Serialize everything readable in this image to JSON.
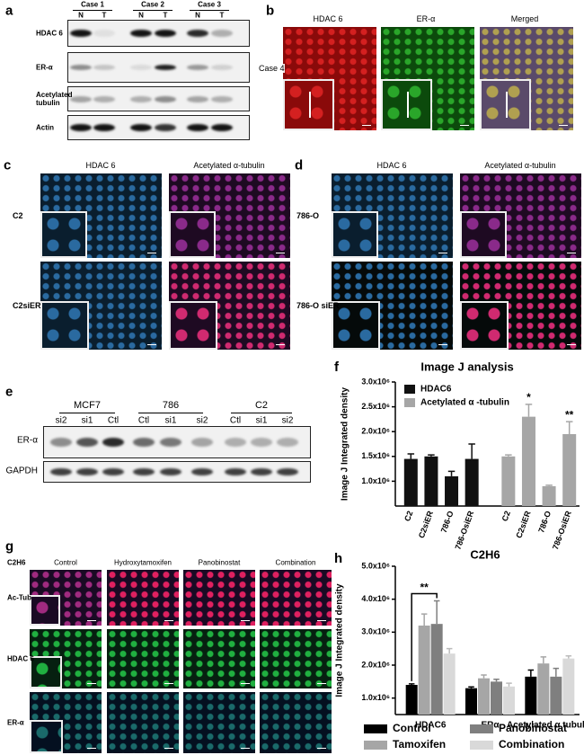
{
  "panels": {
    "a": {
      "label": "a",
      "cases": [
        "Case 1",
        "Case 2",
        "Case 3"
      ],
      "lanes": [
        "N",
        "T",
        "N",
        "T",
        "N",
        "T"
      ],
      "rows": [
        "HDAC 6",
        "ER-α",
        "Acetylated tubulin",
        "Actin"
      ]
    },
    "b": {
      "label": "b",
      "columns": [
        "HDAC 6",
        "ER-α",
        "Merged"
      ],
      "row": "Case 4"
    },
    "c": {
      "label": "c",
      "columns": [
        "HDAC 6",
        "Acetylated α-tubulin"
      ],
      "rows": [
        "C2",
        "C2siER"
      ]
    },
    "d": {
      "label": "d",
      "columns": [
        "HDAC 6",
        "Acetylated α-tubulin"
      ],
      "rows": [
        "786-O",
        "786-O siER"
      ]
    },
    "e": {
      "label": "e",
      "groups": [
        "MCF7",
        "786",
        "C2"
      ],
      "lanes": [
        "si2",
        "si1",
        "Ctl",
        "Ctl",
        "si1",
        "si2",
        "Ctl",
        "si1",
        "si2"
      ],
      "rows": [
        "ER-α",
        "GAPDH"
      ]
    },
    "g": {
      "label": "g",
      "corner": "C2H6",
      "columns": [
        "Control",
        "Hydroxytamoxifen",
        "Panobinostat",
        "Combination"
      ],
      "rows": [
        "Ac-Tub",
        "HDAC 6",
        "ER-α"
      ]
    }
  },
  "chart_data": [
    {
      "type": "bar",
      "panel_label": "f",
      "title": "Image J analysis",
      "y_label": "Image J Integrated density",
      "categories": [
        "C2",
        "C2siER",
        "786-O",
        "786-OsiER",
        "C2",
        "C2siER",
        "786-O",
        "786-OsiER"
      ],
      "series": [
        {
          "name": "HDAC6",
          "color": "#111111",
          "values": [
            1450000,
            1500000,
            1100000,
            1450000,
            null,
            null,
            null,
            null
          ],
          "errors": [
            100000,
            30000,
            100000,
            300000,
            null,
            null,
            null,
            null
          ]
        },
        {
          "name": "Acetylated α -tubulin",
          "color": "#a6a6a6",
          "values": [
            null,
            null,
            null,
            null,
            1500000,
            2300000,
            900000,
            1950000
          ],
          "errors": [
            null,
            null,
            null,
            null,
            30000,
            250000,
            20000,
            250000
          ],
          "significance": [
            null,
            null,
            null,
            null,
            null,
            "*",
            null,
            "**"
          ]
        }
      ],
      "ylim": [
        500000,
        3000000
      ],
      "yticks": [
        {
          "value": 1000000,
          "label": "1.0x10⁶"
        },
        {
          "value": 1500000,
          "label": "1.5x10⁶"
        },
        {
          "value": 2000000,
          "label": "2.0x10⁶"
        },
        {
          "value": 2500000,
          "label": "2.5x10⁶"
        },
        {
          "value": 3000000,
          "label": "3.0x10⁶"
        }
      ],
      "legend": "upper left"
    },
    {
      "type": "bar",
      "panel_label": "h",
      "title": "C2H6",
      "y_label": "Image J Integrated density",
      "categories": [
        "HDAC6",
        "ERα",
        "Acetylated α tubulin"
      ],
      "series": [
        {
          "name": "Control",
          "color": "#000000",
          "values": [
            1400000,
            1300000,
            1650000
          ],
          "errors": [
            30000,
            40000,
            200000
          ]
        },
        {
          "name": "Tamoxifen",
          "color": "#a6a6a6",
          "values": [
            3200000,
            1600000,
            2050000
          ],
          "errors": [
            350000,
            100000,
            200000
          ]
        },
        {
          "name": "Panobinostat",
          "color": "#7f7f7f",
          "values": [
            3250000,
            1500000,
            1650000
          ],
          "errors": [
            700000,
            70000,
            250000
          ],
          "significance": [
            "**",
            null,
            null
          ]
        },
        {
          "name": "Combination",
          "color": "#d9d9d9",
          "values": [
            2350000,
            1350000,
            2200000
          ],
          "errors": [
            150000,
            100000,
            80000
          ]
        }
      ],
      "ylim": [
        500000,
        5000000
      ],
      "yticks": [
        {
          "value": 1000000,
          "label": "1.0x10⁶"
        },
        {
          "value": 2000000,
          "label": "2.0x10⁶"
        },
        {
          "value": 3000000,
          "label": "3.0x10⁶"
        },
        {
          "value": 4000000,
          "label": "4.0x10⁶"
        },
        {
          "value": 5000000,
          "label": "5.0x10⁶"
        }
      ],
      "legend": "bottom"
    }
  ]
}
